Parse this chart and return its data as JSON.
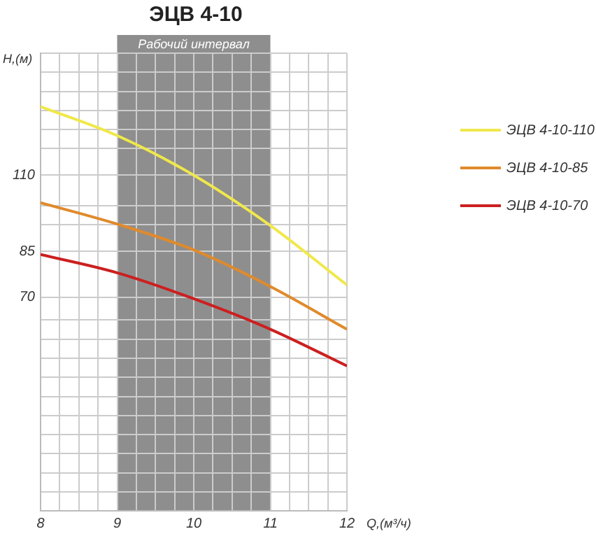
{
  "chart_data": {
    "type": "line",
    "title": "ЭЦВ 4-10",
    "xlabel": "Q,(м³/ч)",
    "ylabel": "H,(м)",
    "x": [
      8,
      9,
      10,
      11,
      12
    ],
    "series": [
      {
        "name": "ЭЦВ 4-10-110",
        "color": "#f0e84a",
        "values": [
          132.5,
          123,
          110,
          93.5,
          74
        ]
      },
      {
        "name": "ЭЦВ 4-10-85",
        "color": "#e08a2c",
        "values": [
          101,
          94,
          85.5,
          73.5,
          59.5
        ]
      },
      {
        "name": "ЭЦВ 4-10-70",
        "color": "#cc1f1f",
        "values": [
          84,
          78,
          69.5,
          59.5,
          47.5
        ]
      }
    ],
    "xlim": [
      8,
      12
    ],
    "xticks": [
      8,
      {
        "value": 8.25,
        "label": null
      },
      {
        "value": 8.5,
        "label": null
      },
      {
        "value": 8.75,
        "label": null
      },
      9,
      {
        "value": 9.25,
        "label": null
      },
      {
        "value": 9.5,
        "label": null
      },
      {
        "value": 9.75,
        "label": null
      },
      10,
      {
        "value": 10.25,
        "label": null
      },
      {
        "value": 10.5,
        "label": null
      },
      {
        "value": 10.75,
        "label": null
      },
      11,
      {
        "value": 11.25,
        "label": null
      },
      {
        "value": 11.5,
        "label": null
      },
      {
        "value": 11.75,
        "label": null
      },
      12
    ],
    "ylim": [
      0,
      150
    ],
    "yticks": [
      {
        "value": 0,
        "label": null
      },
      {
        "value": 6.25,
        "label": null
      },
      {
        "value": 12.5,
        "label": null
      },
      {
        "value": 18.75,
        "label": null
      },
      {
        "value": 25,
        "label": null
      },
      {
        "value": 31.25,
        "label": null
      },
      {
        "value": 37.5,
        "label": null
      },
      {
        "value": 43.75,
        "label": null
      },
      {
        "value": 50,
        "label": null
      },
      {
        "value": 56.25,
        "label": null
      },
      {
        "value": 62.5,
        "label": null
      },
      70,
      85,
      {
        "value": 93.75,
        "label": null
      },
      {
        "value": 100,
        "label": null
      },
      110,
      {
        "value": 118.75,
        "label": null
      },
      {
        "value": 125,
        "label": null
      },
      {
        "value": 131.25,
        "label": null
      },
      {
        "value": 137.5,
        "label": null
      },
      {
        "value": 143.75,
        "label": null
      },
      {
        "value": 150,
        "label": null
      }
    ],
    "bands": [
      {
        "axis": "x",
        "from": 9,
        "to": 11,
        "label": "Рабочий интервал",
        "color": "#8e8e8e"
      }
    ],
    "grid": true,
    "legend": "right",
    "marker": "none",
    "line_style": "solid"
  }
}
